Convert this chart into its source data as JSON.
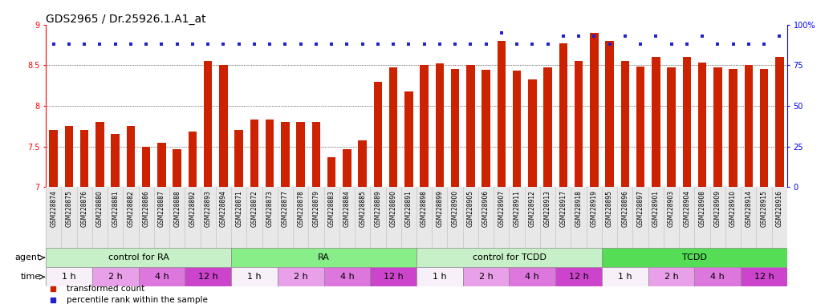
{
  "title": "GDS2965 / Dr.25926.1.A1_at",
  "samples": [
    "GSM228874",
    "GSM228875",
    "GSM228876",
    "GSM228880",
    "GSM228881",
    "GSM228882",
    "GSM228886",
    "GSM228887",
    "GSM228888",
    "GSM228892",
    "GSM228893",
    "GSM228894",
    "GSM228871",
    "GSM228872",
    "GSM228873",
    "GSM228877",
    "GSM228878",
    "GSM228879",
    "GSM228883",
    "GSM228884",
    "GSM228885",
    "GSM228889",
    "GSM228890",
    "GSM228891",
    "GSM228898",
    "GSM228899",
    "GSM228900",
    "GSM228905",
    "GSM228906",
    "GSM228907",
    "GSM228911",
    "GSM228912",
    "GSM228913",
    "GSM228917",
    "GSM228918",
    "GSM228919",
    "GSM228895",
    "GSM228896",
    "GSM228897",
    "GSM228901",
    "GSM228903",
    "GSM228904",
    "GSM228908",
    "GSM228909",
    "GSM228910",
    "GSM228914",
    "GSM228915",
    "GSM228916"
  ],
  "bar_values": [
    7.7,
    7.75,
    7.7,
    7.8,
    7.65,
    7.75,
    7.5,
    7.55,
    7.47,
    7.68,
    8.55,
    8.5,
    7.7,
    7.83,
    7.83,
    7.8,
    7.8,
    7.8,
    7.37,
    7.47,
    7.58,
    8.3,
    8.47,
    8.18,
    8.5,
    8.52,
    8.45,
    8.5,
    8.44,
    8.8,
    8.43,
    8.33,
    8.47,
    8.77,
    8.55,
    8.9,
    8.8,
    8.55,
    8.48,
    8.6,
    8.47,
    8.6,
    8.53,
    8.47,
    8.45,
    8.5,
    8.45,
    8.6
  ],
  "percentile_values": [
    88,
    88,
    88,
    88,
    88,
    88,
    88,
    88,
    88,
    88,
    88,
    88,
    88,
    88,
    88,
    88,
    88,
    88,
    88,
    88,
    88,
    88,
    88,
    88,
    88,
    88,
    88,
    88,
    88,
    95,
    88,
    88,
    88,
    93,
    93,
    93,
    88,
    93,
    88,
    93,
    88,
    88,
    93,
    88,
    88,
    88,
    88,
    93
  ],
  "agent_groups": [
    {
      "label": "control for RA",
      "start": 0,
      "end": 12,
      "color": "#c8f0c8"
    },
    {
      "label": "RA",
      "start": 12,
      "end": 24,
      "color": "#88ee88"
    },
    {
      "label": "control for TCDD",
      "start": 24,
      "end": 36,
      "color": "#c8f0c8"
    },
    {
      "label": "TCDD",
      "start": 36,
      "end": 48,
      "color": "#55dd55"
    }
  ],
  "time_groups": [
    {
      "label": "1 h",
      "start": 0,
      "end": 3,
      "color": "#f8f0f8"
    },
    {
      "label": "2 h",
      "start": 3,
      "end": 6,
      "color": "#e8a0e8"
    },
    {
      "label": "4 h",
      "start": 6,
      "end": 9,
      "color": "#dd77dd"
    },
    {
      "label": "12 h",
      "start": 9,
      "end": 12,
      "color": "#cc44cc"
    },
    {
      "label": "1 h",
      "start": 12,
      "end": 15,
      "color": "#f8f0f8"
    },
    {
      "label": "2 h",
      "start": 15,
      "end": 18,
      "color": "#e8a0e8"
    },
    {
      "label": "4 h",
      "start": 18,
      "end": 21,
      "color": "#dd77dd"
    },
    {
      "label": "12 h",
      "start": 21,
      "end": 24,
      "color": "#cc44cc"
    },
    {
      "label": "1 h",
      "start": 24,
      "end": 27,
      "color": "#f8f0f8"
    },
    {
      "label": "2 h",
      "start": 27,
      "end": 30,
      "color": "#e8a0e8"
    },
    {
      "label": "4 h",
      "start": 30,
      "end": 33,
      "color": "#dd77dd"
    },
    {
      "label": "12 h",
      "start": 33,
      "end": 36,
      "color": "#cc44cc"
    },
    {
      "label": "1 h",
      "start": 36,
      "end": 39,
      "color": "#f8f0f8"
    },
    {
      "label": "2 h",
      "start": 39,
      "end": 42,
      "color": "#e8a0e8"
    },
    {
      "label": "4 h",
      "start": 42,
      "end": 45,
      "color": "#dd77dd"
    },
    {
      "label": "12 h",
      "start": 45,
      "end": 48,
      "color": "#cc44cc"
    }
  ],
  "bar_color": "#cc2200",
  "dot_color": "#2222cc",
  "ylim_left": [
    7.0,
    9.0
  ],
  "ylim_right": [
    0,
    100
  ],
  "yticks_left": [
    7.0,
    7.5,
    8.0,
    8.5,
    9.0
  ],
  "yticks_right": [
    0,
    25,
    50,
    75,
    100
  ],
  "background_color": "#ffffff",
  "plot_bg_color": "#ffffff",
  "title_fontsize": 10,
  "tick_fontsize": 5.5,
  "label_row_fontsize": 8,
  "agent_label": "agent",
  "time_label": "time",
  "legend_bar": "transformed count",
  "legend_dot": "percentile rank within the sample"
}
